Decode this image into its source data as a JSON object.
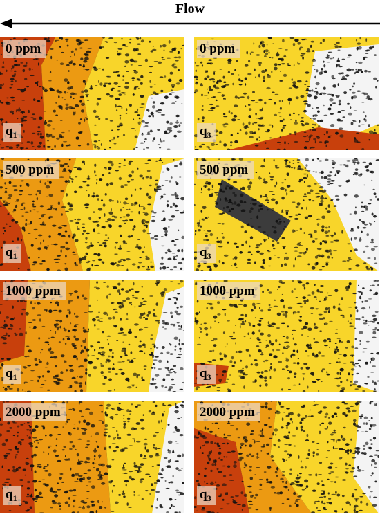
{
  "header": {
    "flow_label": "Flow"
  },
  "panels": [
    {
      "concentration": "0 ppm",
      "rate": "q",
      "rate_sub": "1",
      "zones": [
        "#c8400c",
        "#ec9a12",
        "#f8d52a",
        "#f4f4f4"
      ]
    },
    {
      "concentration": "0 ppm",
      "rate": "q",
      "rate_sub": "3",
      "zones": [
        "#f8d52a",
        "#f8d52a",
        "#f4f4f4",
        "#c8400c"
      ]
    },
    {
      "concentration": "500 ppm",
      "rate": "q",
      "rate_sub": "1",
      "zones": [
        "#c8400c",
        "#ec9a12",
        "#f8d52a",
        "#f4f4f4"
      ]
    },
    {
      "concentration": "500 ppm",
      "rate": "q",
      "rate_sub": "3",
      "zones": [
        "#f8d52a",
        "#f8d52a",
        "#f4f4f4",
        "#3c3c3c"
      ]
    },
    {
      "concentration": "1000 ppm",
      "rate": "q",
      "rate_sub": "1",
      "zones": [
        "#c8400c",
        "#ec9a12",
        "#f8d52a",
        "#f4f4f4"
      ]
    },
    {
      "concentration": "1000 ppm",
      "rate": "q",
      "rate_sub": "3",
      "zones": [
        "#f8d52a",
        "#f8d52a",
        "#f4f4f4",
        "#c8400c"
      ]
    },
    {
      "concentration": "2000 ppm",
      "rate": "q",
      "rate_sub": "1",
      "zones": [
        "#c8400c",
        "#ec9a12",
        "#f8d52a",
        "#f4f4f4"
      ]
    },
    {
      "concentration": "2000 ppm",
      "rate": "q",
      "rate_sub": "3",
      "zones": [
        "#c8400c",
        "#ec9a12",
        "#f8d52a",
        "#f4f4f4"
      ]
    }
  ]
}
